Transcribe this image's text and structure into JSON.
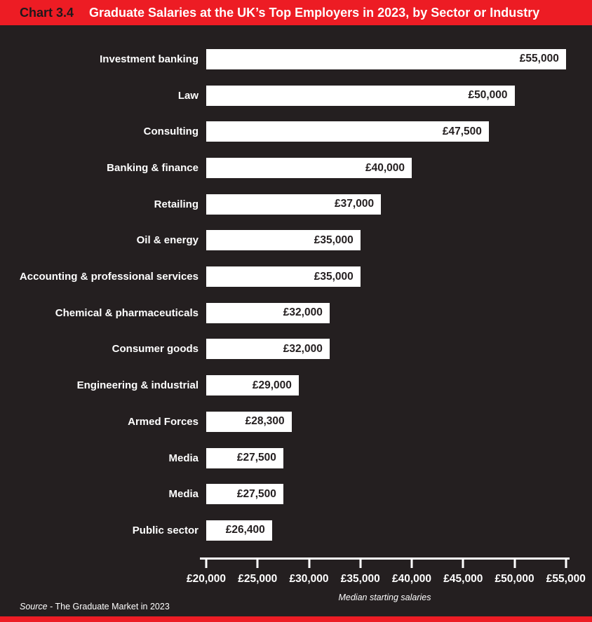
{
  "header": {
    "chart_number": "Chart 3.4",
    "title": "Graduate Salaries at the UK’s Top Employers in 2023, by Sector or Industry"
  },
  "chart_data": {
    "type": "bar",
    "orientation": "horizontal",
    "title": "Graduate Salaries at the UK’s Top Employers in 2023, by Sector or Industry",
    "categories": [
      "Investment banking",
      "Law",
      "Consulting",
      "Banking & finance",
      "Retailing",
      "Oil & energy",
      "Accounting & professional services",
      "Chemical & pharmaceuticals",
      "Consumer goods",
      "Engineering & industrial",
      "Armed Forces",
      "Media",
      "Media",
      "Public sector"
    ],
    "values": [
      55000,
      50000,
      47500,
      40000,
      37000,
      35000,
      35000,
      32000,
      32000,
      29000,
      28300,
      27500,
      27500,
      26400
    ],
    "value_labels": [
      "£55,000",
      "£50,000",
      "£47,500",
      "£40,000",
      "£37,000",
      "£35,000",
      "£35,000",
      "£32,000",
      "£32,000",
      "£29,000",
      "£28,300",
      "£27,500",
      "£27,500",
      "£26,400"
    ],
    "xlabel": "Median starting salaries",
    "xlim": [
      20000,
      55000
    ],
    "x_ticks": [
      {
        "value": 20000,
        "label": "£20,000"
      },
      {
        "value": 25000,
        "label": "£25,000"
      },
      {
        "value": 30000,
        "label": "£30,000"
      },
      {
        "value": 35000,
        "label": "£35,000"
      },
      {
        "value": 40000,
        "label": "£40,000"
      },
      {
        "value": 45000,
        "label": "£45,000"
      },
      {
        "value": 50000,
        "label": "£50,000"
      },
      {
        "value": 55000,
        "label": "£55,000"
      }
    ],
    "grid": false,
    "legend": false,
    "bar_color": "#ffffff",
    "value_label_position": "inside-right"
  },
  "footer": {
    "source_prefix": "Source",
    "source_text": " - The Graduate Market in 2023"
  },
  "colors": {
    "accent_red": "#ed1c24",
    "background": "#241f20",
    "bar": "#ffffff",
    "text_light": "#ffffff",
    "text_dark": "#241f20"
  }
}
